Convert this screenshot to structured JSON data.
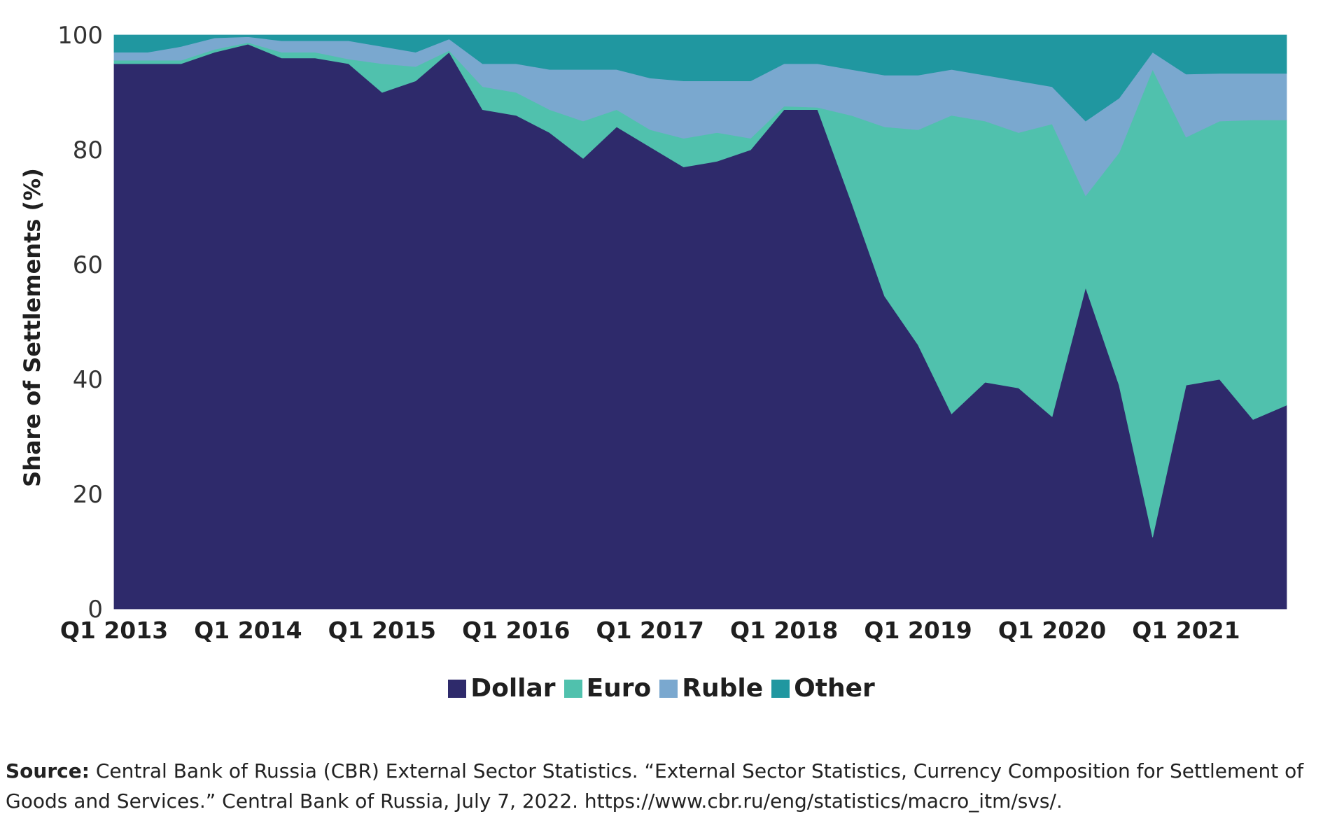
{
  "chart_data": {
    "type": "area",
    "stacked": true,
    "ylabel": "Share of Settlements (%)",
    "ylim": [
      0,
      100
    ],
    "yticks": [
      "0",
      "20",
      "40",
      "60",
      "80",
      "100"
    ],
    "x": [
      "Q1 2013",
      "Q2 2013",
      "Q3 2013",
      "Q4 2013",
      "Q1 2014",
      "Q2 2014",
      "Q3 2014",
      "Q4 2014",
      "Q1 2015",
      "Q2 2015",
      "Q3 2015",
      "Q4 2015",
      "Q1 2016",
      "Q2 2016",
      "Q3 2016",
      "Q4 2016",
      "Q1 2017",
      "Q2 2017",
      "Q3 2017",
      "Q4 2017",
      "Q1 2018",
      "Q2 2018",
      "Q3 2018",
      "Q4 2018",
      "Q1 2019",
      "Q2 2019",
      "Q3 2019",
      "Q4 2019",
      "Q1 2020",
      "Q2 2020",
      "Q3 2020",
      "Q4 2020",
      "Q1 2021",
      "Q2 2021",
      "Q3 2021",
      "Q4 2021"
    ],
    "xtick_labels": [
      "Q1 2013",
      "Q1 2014",
      "Q1 2015",
      "Q1 2016",
      "Q1 2017",
      "Q1 2018",
      "Q1 2019",
      "Q1 2020",
      "Q1 2021"
    ],
    "series": [
      {
        "name": "Dollar",
        "color": "#2e2a6b",
        "values": [
          95,
          95,
          95,
          97,
          98.4,
          96,
          96,
          95,
          90,
          92,
          97,
          87,
          86,
          83,
          78.5,
          84,
          80.5,
          77,
          78,
          80,
          87,
          87,
          71,
          54.5,
          46,
          34,
          39.5,
          38.5,
          33.5,
          56,
          39,
          12.5,
          39,
          40,
          33,
          35.5
        ]
      },
      {
        "name": "Euro",
        "color": "#50c1ad",
        "values": [
          0.6,
          0.6,
          0.6,
          0.5,
          0.3,
          1,
          1,
          0.8,
          5,
          2.5,
          0.3,
          4,
          4,
          4,
          6.5,
          3,
          3,
          5,
          5,
          2,
          0.6,
          0.4,
          15,
          29.5,
          37.5,
          52,
          45.5,
          44.5,
          51,
          16,
          40.5,
          81.5,
          43.2,
          45,
          52.2,
          49.7
        ]
      },
      {
        "name": "Ruble",
        "color": "#7aa8cf",
        "values": [
          1.4,
          1.4,
          2.4,
          2,
          1,
          2,
          2,
          3.2,
          3,
          2.5,
          2,
          4,
          5,
          7,
          9,
          7,
          9,
          10,
          9,
          10,
          7.4,
          7.6,
          8,
          9,
          9.5,
          8,
          8,
          9,
          6.5,
          13,
          9.5,
          3,
          11,
          8.3,
          8.1,
          8.1
        ]
      },
      {
        "name": "Other",
        "color": "#2097a0",
        "values": [
          3,
          3,
          2,
          0.5,
          0.3,
          1,
          1,
          1,
          2,
          3,
          0.7,
          5,
          5,
          6,
          6,
          6,
          7.5,
          8,
          8,
          8,
          5,
          5,
          6,
          7,
          7,
          6,
          7,
          8,
          9,
          15,
          11,
          3,
          6.8,
          6.7,
          6.7,
          6.7
        ]
      }
    ]
  },
  "source": {
    "label": "Source:",
    "text": "Central Bank of Russia (CBR) External Sector Statistics. “External Sector Statistics, Currency Composition for Settlement of Goods and Services.” Central Bank of Russia, July 7, 2022. https://www.cbr.ru/eng/statistics/macro_itm/svs/."
  }
}
